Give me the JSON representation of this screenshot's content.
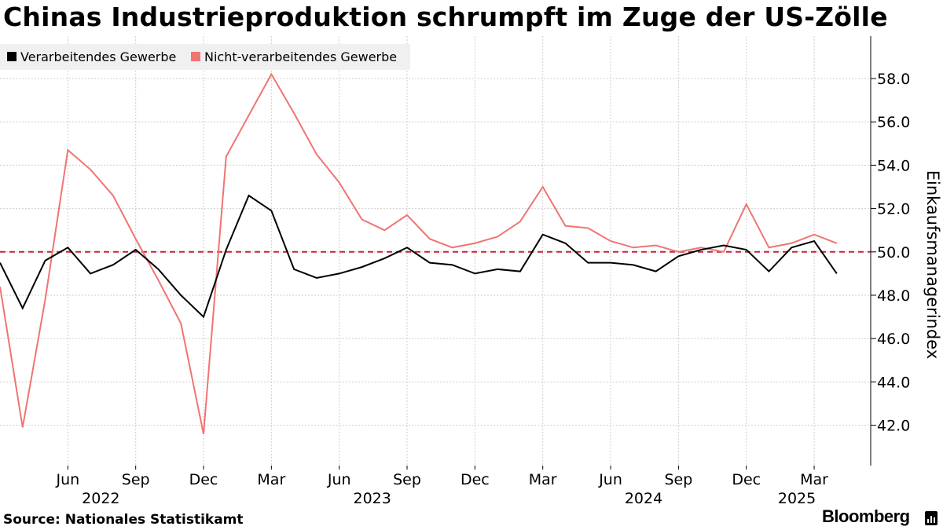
{
  "title": "Chinas Industrieproduktion schrumpft im Zuge der US-Zölle",
  "source": "Source: Nationales Statistikamt",
  "brand": "Bloomberg",
  "brand_icon": "bloomberg-terminal-icon",
  "colors": {
    "manufacturing": "#000000",
    "non_manufacturing": "#f07472",
    "threshold": "#c3243c",
    "grid": "#cfcfcf",
    "legend_bg": "#f0f0f0"
  },
  "chart_data": {
    "type": "line",
    "title": "Chinas Industrieproduktion schrumpft im Zuge der US-Zölle",
    "xlabel": "",
    "ylabel": "Einkaufsmanagerindex",
    "ylim": [
      40,
      60
    ],
    "yticks": [
      "42.0",
      "44.0",
      "46.0",
      "48.0",
      "50.0",
      "52.0",
      "54.0",
      "56.0",
      "58.0"
    ],
    "x": [
      "2022-03",
      "2022-04",
      "2022-05",
      "2022-06",
      "2022-07",
      "2022-08",
      "2022-09",
      "2022-10",
      "2022-11",
      "2022-12",
      "2023-01",
      "2023-02",
      "2023-03",
      "2023-04",
      "2023-05",
      "2023-06",
      "2023-07",
      "2023-08",
      "2023-09",
      "2023-10",
      "2023-11",
      "2023-12",
      "2024-01",
      "2024-02",
      "2024-03",
      "2024-04",
      "2024-05",
      "2024-06",
      "2024-07",
      "2024-08",
      "2024-09",
      "2024-10",
      "2024-11",
      "2024-12",
      "2025-01",
      "2025-02",
      "2025-03",
      "2025-04"
    ],
    "xticks": [
      "Jun",
      "Sep",
      "Dec",
      "Mar",
      "Jun",
      "Sep",
      "Dec",
      "Mar",
      "Jun",
      "Sep",
      "Dec",
      "Mar"
    ],
    "xtick_dates": [
      "2022-06",
      "2022-09",
      "2022-12",
      "2023-03",
      "2023-06",
      "2023-09",
      "2023-12",
      "2024-03",
      "2024-06",
      "2024-09",
      "2024-12",
      "2025-03"
    ],
    "years": [
      "2022",
      "2023",
      "2024",
      "2025"
    ],
    "year_dates": [
      "2022-06",
      "2023-06",
      "2024-06",
      "2025-03"
    ],
    "series": [
      {
        "name": "Verarbeitendes Gewerbe",
        "values": [
          49.5,
          47.4,
          49.6,
          50.2,
          49.0,
          49.4,
          50.1,
          49.2,
          48.0,
          47.0,
          50.1,
          52.6,
          51.9,
          49.2,
          48.8,
          49.0,
          49.3,
          49.7,
          50.2,
          49.5,
          49.4,
          49.0,
          49.2,
          49.1,
          50.8,
          50.4,
          49.5,
          49.5,
          49.4,
          49.1,
          49.8,
          50.1,
          50.3,
          50.1,
          49.1,
          50.2,
          50.5,
          49.0
        ]
      },
      {
        "name": "Nicht-verarbeitendes Gewerbe",
        "values": [
          48.4,
          41.9,
          47.8,
          54.7,
          53.8,
          52.6,
          50.6,
          48.7,
          46.7,
          41.6,
          54.4,
          56.3,
          58.2,
          56.4,
          54.5,
          53.2,
          51.5,
          51.0,
          51.7,
          50.6,
          50.2,
          50.4,
          50.7,
          51.4,
          53.0,
          51.2,
          51.1,
          50.5,
          50.2,
          50.3,
          50.0,
          50.2,
          50.0,
          52.2,
          50.2,
          50.4,
          50.8,
          50.4
        ]
      }
    ],
    "reference_line": 50.0,
    "legend_position": "top-left",
    "grid": true
  }
}
